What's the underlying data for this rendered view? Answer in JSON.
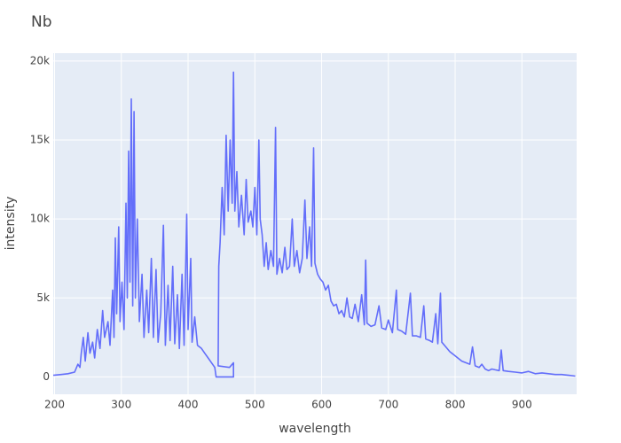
{
  "chart_data": {
    "type": "line",
    "title": "Nb",
    "x_label": "wavelength",
    "y_label": "intensity",
    "x": [
      198,
      210,
      220,
      230,
      235,
      238,
      240,
      243,
      246,
      250,
      253,
      257,
      260,
      264,
      268,
      272,
      275,
      280,
      283,
      287,
      289,
      291,
      293,
      296,
      298,
      301,
      304,
      307,
      309,
      311,
      313,
      315,
      317,
      319,
      321,
      324,
      327,
      331,
      334,
      338,
      341,
      345,
      348,
      352,
      355,
      359,
      363,
      366,
      370,
      373,
      377,
      380,
      384,
      387,
      391,
      394,
      398,
      400,
      404,
      406,
      410,
      414,
      420,
      425,
      430,
      435,
      440,
      442,
      468,
      468,
      462,
      445,
      446,
      448,
      451,
      454,
      457,
      460,
      463,
      466,
      468,
      470,
      473,
      476,
      480,
      484,
      487,
      490,
      494,
      497,
      500,
      503,
      506,
      508,
      511,
      514,
      517,
      520,
      524,
      528,
      531,
      533,
      537,
      541,
      545,
      548,
      552,
      556,
      559,
      563,
      567,
      571,
      575,
      578,
      582,
      585,
      588,
      590,
      594,
      598,
      602,
      606,
      610,
      614,
      618,
      622,
      626,
      630,
      634,
      638,
      642,
      646,
      650,
      655,
      660,
      664,
      666,
      668,
      674,
      680,
      686,
      690,
      696,
      700,
      706,
      712,
      714,
      720,
      726,
      733,
      736,
      742,
      748,
      753,
      756,
      762,
      766,
      771,
      774,
      778,
      780,
      786,
      792,
      798,
      804,
      810,
      816,
      822,
      826,
      830,
      836,
      840,
      845,
      850,
      855,
      860,
      866,
      869,
      872,
      880,
      890,
      900,
      910,
      920,
      930,
      940,
      950,
      960,
      970,
      980
    ],
    "series": [
      {
        "name": "Nb",
        "color": "#636efa",
        "values": [
          100,
          150,
          200,
          300,
          800,
          600,
          1500,
          2500,
          1000,
          2800,
          1500,
          2200,
          1200,
          3000,
          1800,
          4200,
          2500,
          3500,
          2000,
          5500,
          2500,
          8800,
          4000,
          9500,
          3500,
          6000,
          3000,
          11000,
          5000,
          14300,
          6000,
          17600,
          4500,
          16800,
          5000,
          10000,
          3500,
          6500,
          2500,
          5500,
          2800,
          7500,
          2500,
          6800,
          2200,
          4000,
          9600,
          2000,
          5800,
          2300,
          7000,
          2100,
          5200,
          1800,
          6500,
          2000,
          10300,
          3000,
          7500,
          2200,
          3800,
          2000,
          1800,
          1500,
          1200,
          900,
          600,
          0,
          0,
          900,
          600,
          700,
          7000,
          8500,
          12000,
          9000,
          15300,
          10500,
          15000,
          11000,
          19300,
          10500,
          13000,
          9500,
          11500,
          9000,
          12500,
          9800,
          10500,
          9500,
          12000,
          9000,
          15000,
          10000,
          9000,
          7000,
          8500,
          6800,
          8000,
          7000,
          15800,
          6500,
          7500,
          6600,
          8200,
          6800,
          7000,
          10000,
          7000,
          8000,
          6600,
          7500,
          11200,
          7500,
          9500,
          7000,
          14500,
          7200,
          6500,
          6200,
          6000,
          5500,
          5800,
          4800,
          4500,
          4600,
          4000,
          4200,
          3800,
          5000,
          3800,
          3700,
          4600,
          3500,
          5200,
          3300,
          7400,
          3400,
          3200,
          3300,
          4500,
          3100,
          3000,
          3600,
          2800,
          5500,
          3000,
          2900,
          2700,
          5300,
          2600,
          2600,
          2500,
          4500,
          2400,
          2300,
          2200,
          4000,
          2100,
          5300,
          2200,
          1900,
          1600,
          1400,
          1200,
          1000,
          900,
          800,
          1900,
          700,
          600,
          800,
          500,
          400,
          500,
          450,
          400,
          1700,
          400,
          350,
          300,
          250,
          350,
          200,
          250,
          200,
          150,
          150,
          100,
          50
        ]
      }
    ],
    "xlim": [
      198,
      982
    ],
    "ylim": [
      -1100,
      20500
    ],
    "xticks": [
      200,
      300,
      400,
      500,
      600,
      700,
      800,
      900
    ],
    "yticks": [
      0,
      {
        "value": 5000,
        "label": "5k"
      },
      {
        "value": 10000,
        "label": "10k"
      },
      {
        "value": 15000,
        "label": "15k"
      },
      {
        "value": 20000,
        "label": "20k"
      }
    ],
    "grid": true
  }
}
